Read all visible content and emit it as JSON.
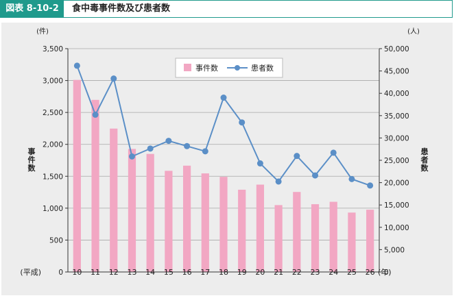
{
  "header": {
    "figure_number": "図表 8-10-2",
    "title": "食中毒事件数及び患者数"
  },
  "colors": {
    "accent": "#1f9a8c",
    "bar": "#f2a7c3",
    "line": "#5b8fc7",
    "panel": "#ededed"
  },
  "chart_data": {
    "type": "bar",
    "categories": [
      "10",
      "11",
      "12",
      "13",
      "14",
      "15",
      "16",
      "17",
      "18",
      "19",
      "20",
      "21",
      "22",
      "23",
      "24",
      "25",
      "26"
    ],
    "x_prefix": "(平成)",
    "x_suffix": "(年)",
    "series": [
      {
        "name": "事件数",
        "type": "bar",
        "axis": "left",
        "values": [
          3010,
          2697,
          2247,
          1928,
          1850,
          1585,
          1666,
          1545,
          1491,
          1289,
          1369,
          1048,
          1254,
          1062,
          1100,
          931,
          976
        ]
      },
      {
        "name": "患者数",
        "type": "line",
        "axis": "right",
        "values": [
          46179,
          35214,
          43307,
          25862,
          27629,
          29355,
          28175,
          27019,
          39026,
          33477,
          24303,
          20249,
          25972,
          21616,
          26699,
          20802,
          19355
        ]
      }
    ],
    "y_left": {
      "label": "事件数",
      "unit": "(件)",
      "ylim": [
        0,
        3500
      ],
      "ticks": [
        "0",
        "500",
        "1,000",
        "1,500",
        "2,000",
        "2,500",
        "3,000",
        "3,500"
      ]
    },
    "y_right": {
      "label": "患者数",
      "unit": "(人)",
      "ylim": [
        0,
        50000
      ],
      "ticks": [
        "0",
        "5,000",
        "10,000",
        "15,000",
        "20,000",
        "25,000",
        "30,000",
        "35,000",
        "40,000",
        "45,000",
        "50,000"
      ]
    },
    "grid": true,
    "legend_position": "top-center"
  }
}
